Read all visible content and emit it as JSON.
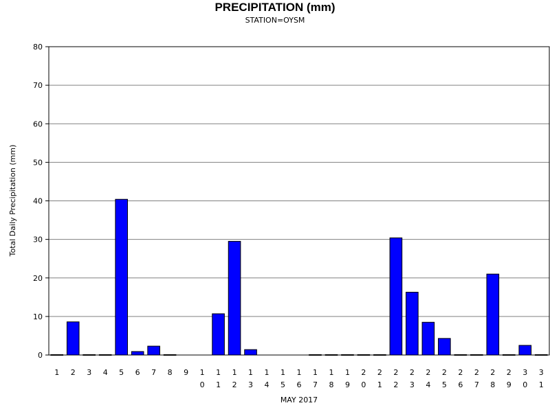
{
  "chart_data": {
    "type": "bar",
    "title": "PRECIPITATION (mm)",
    "subtitle": "STATION=OYSM",
    "xlabel": "MAY 2017",
    "ylabel": "Total Daily Precipitation (mm)",
    "ylim": [
      0,
      80
    ],
    "yticks": [
      0,
      10,
      20,
      30,
      40,
      50,
      60,
      70,
      80
    ],
    "grid": true,
    "categories": [
      "1",
      "2",
      "3",
      "4",
      "5",
      "6",
      "7",
      "8",
      "9",
      "10",
      "11",
      "12",
      "13",
      "14",
      "15",
      "16",
      "17",
      "18",
      "19",
      "20",
      "21",
      "22",
      "23",
      "24",
      "25",
      "26",
      "27",
      "28",
      "29",
      "30",
      "31"
    ],
    "values": [
      0.1,
      8.6,
      0.1,
      0.1,
      40.4,
      0.9,
      2.3,
      0.1,
      null,
      null,
      10.7,
      29.5,
      1.4,
      null,
      null,
      null,
      0.1,
      0.1,
      0.1,
      0.1,
      0.1,
      30.4,
      16.3,
      8.5,
      4.3,
      0.1,
      0.1,
      21.0,
      0.1,
      2.5,
      0.1
    ],
    "colors": {
      "bar": "#0000ff",
      "bar_edge": "#000000",
      "grid": "#808080"
    }
  }
}
